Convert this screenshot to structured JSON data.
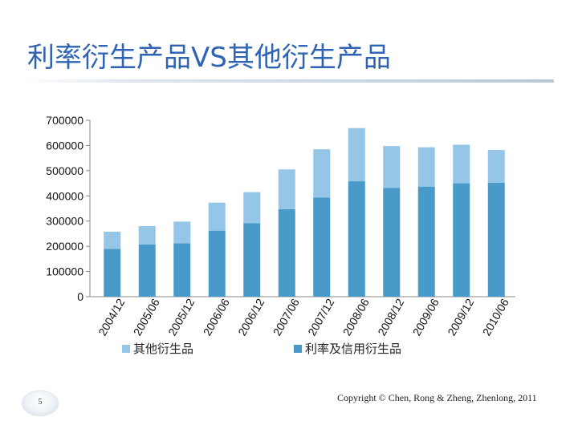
{
  "slide": {
    "title": "利率衍生产品VS其他衍生产品",
    "copyright": "Copyright © Chen, Rong  & Zheng, Zhenlong, 2011",
    "page_number": "5"
  },
  "colors": {
    "title": "#2f64b4",
    "series_other": "#95c6e8",
    "series_rate": "#4a9ac9",
    "axis": "#888888"
  },
  "chart_data": {
    "type": "bar",
    "stacked": true,
    "title": "",
    "xlabel": "",
    "ylabel": "",
    "categories": [
      "2004/12",
      "2005/06",
      "2005/12",
      "2006/06",
      "2006/12",
      "2007/06",
      "2007/12",
      "2008/06",
      "2008/12",
      "2009/06",
      "2009/12",
      "2010/06"
    ],
    "series": [
      {
        "name": "利率及信用衍生品",
        "color": "#4a9ac9",
        "values": [
          190000,
          207000,
          212000,
          262000,
          292000,
          347000,
          393000,
          458000,
          432000,
          437000,
          450000,
          452000
        ]
      },
      {
        "name": "其他衍生品",
        "color": "#95c6e8",
        "values": [
          68000,
          73000,
          86000,
          111000,
          123000,
          158000,
          192000,
          211000,
          166000,
          156000,
          153000,
          130000
        ]
      }
    ],
    "legend_order": [
      "其他衍生品",
      "利率及信用衍生品"
    ],
    "legend_position": "bottom",
    "ylim": [
      0,
      700000
    ],
    "yticks": [
      0,
      100000,
      200000,
      300000,
      400000,
      500000,
      600000,
      700000
    ],
    "ytick_labels": [
      "0",
      "100000",
      "200000",
      "300000",
      "400000",
      "500000",
      "600000",
      "700000"
    ],
    "grid": false
  }
}
